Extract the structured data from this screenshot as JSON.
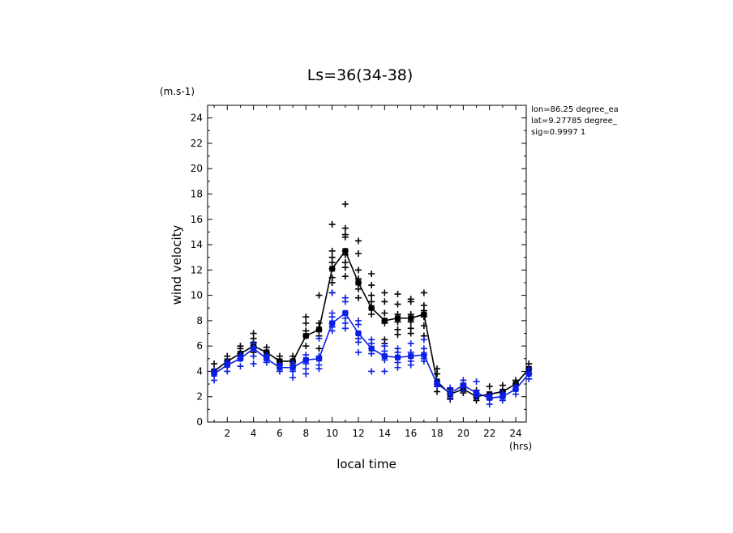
{
  "chart_data": {
    "type": "line",
    "title": "Ls=36(34-38)",
    "xlabel": "local time",
    "ylabel": "wind velocity",
    "x_unit": "(hrs)",
    "y_unit": "(m.s-1)",
    "xlim": [
      0.5,
      24.8
    ],
    "ylim": [
      0,
      25
    ],
    "x_ticks": [
      2,
      4,
      6,
      8,
      10,
      12,
      14,
      16,
      18,
      20,
      22,
      24
    ],
    "y_ticks": [
      0,
      2,
      4,
      6,
      8,
      10,
      12,
      14,
      16,
      18,
      20,
      22,
      24
    ],
    "x_tick_labels": [
      "2",
      "4",
      "6",
      "8",
      "10",
      "12",
      "14",
      "16",
      "18",
      "20",
      "22",
      "24"
    ],
    "y_tick_labels": [
      "0",
      "2",
      "4",
      "6",
      "8",
      "10",
      "12",
      "14",
      "16",
      "18",
      "20",
      "22",
      "24"
    ],
    "annotation": [
      "lon=86.25 degree_ea",
      "lat=9.27785 degree_",
      "sig=0.9997 1"
    ],
    "series": [
      {
        "name": "black",
        "color": "#000000",
        "x": [
          1,
          2,
          3,
          4,
          5,
          6,
          7,
          8,
          9,
          10,
          11,
          12,
          13,
          14,
          15,
          16,
          17,
          18,
          19,
          20,
          21,
          22,
          23,
          24,
          25
        ],
        "values": [
          4.0,
          4.8,
          5.4,
          6.0,
          5.5,
          4.8,
          4.8,
          6.8,
          7.3,
          12.1,
          13.5,
          11.0,
          9.0,
          8.0,
          8.2,
          8.2,
          8.5,
          3.2,
          2.2,
          2.6,
          2.0,
          2.2,
          2.4,
          3.0,
          4.2
        ],
        "scatter": [
          [
            1,
            4.0
          ],
          [
            1,
            4.6
          ],
          [
            1,
            3.8
          ],
          [
            2,
            4.8
          ],
          [
            2,
            5.2
          ],
          [
            2,
            4.5
          ],
          [
            3,
            5.4
          ],
          [
            3,
            6.0
          ],
          [
            3,
            5.0
          ],
          [
            3,
            5.8
          ],
          [
            4,
            6.0
          ],
          [
            4,
            7.0
          ],
          [
            4,
            6.6
          ],
          [
            4,
            6.3
          ],
          [
            4,
            5.5
          ],
          [
            5,
            5.5
          ],
          [
            5,
            5.9
          ],
          [
            5,
            5.2
          ],
          [
            6,
            4.8
          ],
          [
            6,
            5.2
          ],
          [
            6,
            4.5
          ],
          [
            7,
            4.8
          ],
          [
            7,
            5.2
          ],
          [
            7,
            4.5
          ],
          [
            8,
            6.8
          ],
          [
            8,
            8.3
          ],
          [
            8,
            7.8
          ],
          [
            8,
            7.2
          ],
          [
            8,
            6.0
          ],
          [
            9,
            7.3
          ],
          [
            9,
            10.0
          ],
          [
            9,
            7.8
          ],
          [
            9,
            6.8
          ],
          [
            9,
            5.8
          ],
          [
            10,
            12.1
          ],
          [
            10,
            15.6
          ],
          [
            10,
            13.5
          ],
          [
            10,
            13.0
          ],
          [
            10,
            12.6
          ],
          [
            10,
            11.4
          ],
          [
            10,
            11.0
          ],
          [
            10,
            10.2
          ],
          [
            11,
            13.5
          ],
          [
            11,
            17.2
          ],
          [
            11,
            15.3
          ],
          [
            11,
            14.8
          ],
          [
            11,
            14.6
          ],
          [
            11,
            13.2
          ],
          [
            11,
            12.6
          ],
          [
            11,
            12.2
          ],
          [
            11,
            11.5
          ],
          [
            12,
            11.0
          ],
          [
            12,
            14.3
          ],
          [
            12,
            13.3
          ],
          [
            12,
            12.0
          ],
          [
            12,
            11.3
          ],
          [
            12,
            10.5
          ],
          [
            12,
            9.8
          ],
          [
            13,
            9.0
          ],
          [
            13,
            11.7
          ],
          [
            13,
            10.8
          ],
          [
            13,
            10.0
          ],
          [
            13,
            9.5
          ],
          [
            13,
            8.5
          ],
          [
            14,
            8.0
          ],
          [
            14,
            10.2
          ],
          [
            14,
            9.5
          ],
          [
            14,
            8.6
          ],
          [
            14,
            7.8
          ],
          [
            14,
            6.5
          ],
          [
            14,
            6.2
          ],
          [
            15,
            8.2
          ],
          [
            15,
            10.1
          ],
          [
            15,
            9.3
          ],
          [
            15,
            8.5
          ],
          [
            15,
            7.9
          ],
          [
            15,
            7.3
          ],
          [
            15,
            6.9
          ],
          [
            16,
            8.2
          ],
          [
            16,
            9.7
          ],
          [
            16,
            9.5
          ],
          [
            16,
            8.5
          ],
          [
            16,
            7.9
          ],
          [
            16,
            7.4
          ],
          [
            16,
            7.0
          ],
          [
            17,
            8.5
          ],
          [
            17,
            10.2
          ],
          [
            17,
            9.2
          ],
          [
            17,
            8.8
          ],
          [
            17,
            8.3
          ],
          [
            17,
            7.6
          ],
          [
            17,
            6.8
          ],
          [
            18,
            3.2
          ],
          [
            18,
            4.2
          ],
          [
            18,
            3.8
          ],
          [
            18,
            2.4
          ],
          [
            19,
            2.2
          ],
          [
            19,
            2.6
          ],
          [
            19,
            1.8
          ],
          [
            20,
            2.6
          ],
          [
            20,
            3.0
          ],
          [
            20,
            2.3
          ],
          [
            21,
            2.0
          ],
          [
            21,
            2.5
          ],
          [
            21,
            1.7
          ],
          [
            22,
            2.2
          ],
          [
            22,
            2.8
          ],
          [
            22,
            1.8
          ],
          [
            23,
            2.4
          ],
          [
            23,
            2.9
          ],
          [
            23,
            2.0
          ],
          [
            24,
            3.0
          ],
          [
            24,
            3.3
          ],
          [
            24,
            2.6
          ],
          [
            25,
            4.2
          ],
          [
            25,
            4.6
          ],
          [
            25,
            3.8
          ]
        ]
      },
      {
        "name": "blue",
        "color": "#0a1ee6",
        "x": [
          1,
          2,
          3,
          4,
          5,
          6,
          7,
          8,
          9,
          10,
          11,
          12,
          13,
          14,
          15,
          16,
          17,
          18,
          19,
          20,
          21,
          22,
          23,
          24,
          25
        ],
        "values": [
          3.8,
          4.5,
          5.0,
          5.8,
          5.0,
          4.3,
          4.3,
          4.9,
          5.0,
          7.8,
          8.6,
          7.0,
          5.8,
          5.2,
          5.1,
          5.2,
          5.3,
          3.0,
          2.3,
          2.9,
          2.3,
          1.9,
          2.0,
          2.6,
          3.8
        ],
        "scatter": [
          [
            1,
            3.8
          ],
          [
            1,
            3.3
          ],
          [
            1,
            4.1
          ],
          [
            2,
            4.5
          ],
          [
            2,
            4.0
          ],
          [
            2,
            4.8
          ],
          [
            3,
            5.0
          ],
          [
            3,
            4.4
          ],
          [
            3,
            5.3
          ],
          [
            4,
            5.8
          ],
          [
            4,
            6.2
          ],
          [
            4,
            5.2
          ],
          [
            4,
            4.6
          ],
          [
            5,
            5.0
          ],
          [
            5,
            4.7
          ],
          [
            5,
            5.3
          ],
          [
            6,
            4.3
          ],
          [
            6,
            4.0
          ],
          [
            6,
            4.6
          ],
          [
            7,
            4.3
          ],
          [
            7,
            3.5
          ],
          [
            7,
            4.0
          ],
          [
            7,
            4.7
          ],
          [
            8,
            4.9
          ],
          [
            8,
            5.3
          ],
          [
            8,
            4.2
          ],
          [
            8,
            3.8
          ],
          [
            8,
            4.6
          ],
          [
            9,
            5.0
          ],
          [
            9,
            6.6
          ],
          [
            9,
            5.2
          ],
          [
            9,
            4.5
          ],
          [
            9,
            4.2
          ],
          [
            10,
            7.8
          ],
          [
            10,
            10.2
          ],
          [
            10,
            8.6
          ],
          [
            10,
            8.3
          ],
          [
            10,
            7.5
          ],
          [
            10,
            7.2
          ],
          [
            11,
            8.6
          ],
          [
            11,
            9.8
          ],
          [
            11,
            9.5
          ],
          [
            11,
            8.2
          ],
          [
            11,
            7.8
          ],
          [
            11,
            7.4
          ],
          [
            12,
            7.0
          ],
          [
            12,
            8.0
          ],
          [
            12,
            7.7
          ],
          [
            12,
            6.6
          ],
          [
            12,
            6.3
          ],
          [
            12,
            5.5
          ],
          [
            13,
            5.8
          ],
          [
            13,
            6.5
          ],
          [
            13,
            6.2
          ],
          [
            13,
            5.4
          ],
          [
            13,
            4.0
          ],
          [
            14,
            5.2
          ],
          [
            14,
            6.0
          ],
          [
            14,
            5.6
          ],
          [
            14,
            4.9
          ],
          [
            14,
            4.0
          ],
          [
            15,
            5.1
          ],
          [
            15,
            5.8
          ],
          [
            15,
            5.5
          ],
          [
            15,
            4.7
          ],
          [
            15,
            4.3
          ],
          [
            16,
            5.2
          ],
          [
            16,
            6.2
          ],
          [
            16,
            5.5
          ],
          [
            16,
            4.8
          ],
          [
            16,
            4.5
          ],
          [
            17,
            5.3
          ],
          [
            17,
            5.8
          ],
          [
            17,
            6.5
          ],
          [
            17,
            5.0
          ],
          [
            17,
            4.8
          ],
          [
            18,
            3.0
          ],
          [
            18,
            3.2
          ],
          [
            18,
            2.8
          ],
          [
            19,
            2.3
          ],
          [
            19,
            2.7
          ],
          [
            19,
            1.9
          ],
          [
            20,
            2.9
          ],
          [
            20,
            3.3
          ],
          [
            20,
            2.5
          ],
          [
            21,
            2.3
          ],
          [
            21,
            3.2
          ],
          [
            21,
            2.0
          ],
          [
            22,
            1.9
          ],
          [
            22,
            2.2
          ],
          [
            22,
            1.4
          ],
          [
            23,
            2.0
          ],
          [
            23,
            2.3
          ],
          [
            23,
            1.7
          ],
          [
            24,
            2.6
          ],
          [
            24,
            2.9
          ],
          [
            24,
            2.2
          ],
          [
            25,
            3.8
          ],
          [
            25,
            3.4
          ],
          [
            25,
            4.2
          ]
        ]
      }
    ]
  }
}
